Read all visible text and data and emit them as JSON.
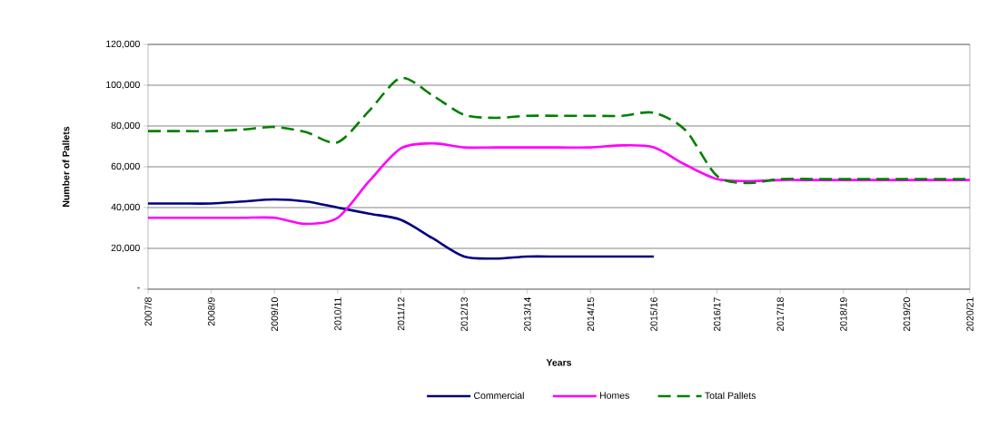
{
  "chart_data": {
    "type": "line",
    "xlabel": "Years",
    "ylabel": "Number of Pallets",
    "categories": [
      "2007/8",
      null,
      "2008/9",
      null,
      "2009/10",
      null,
      "2010/11",
      null,
      "2011/12",
      null,
      "2012/13",
      null,
      "2013/14",
      null,
      "2014/15",
      null,
      "2015/16",
      null,
      "2016/17",
      null,
      "2017/18",
      null,
      "2018/19",
      null,
      "2019/20",
      null,
      "2020/21"
    ],
    "series": [
      {
        "name": "Commercial",
        "color": "#000080",
        "line_style": "solid",
        "values": [
          42000,
          42000,
          42000,
          43000,
          44000,
          43000,
          40000,
          37000,
          34000,
          25000,
          16000,
          15000,
          16000,
          16000,
          16000,
          16000,
          16000,
          null,
          null,
          null,
          null,
          null,
          null,
          null,
          null,
          null,
          null
        ]
      },
      {
        "name": "Homes",
        "color": "#ff00ff",
        "line_style": "solid",
        "values": [
          35000,
          35000,
          35000,
          35000,
          35000,
          32000,
          35000,
          53000,
          69000,
          71500,
          69500,
          69500,
          69500,
          69500,
          69500,
          70500,
          69500,
          61000,
          54000,
          53000,
          53500,
          53500,
          53500,
          53500,
          53500,
          53500,
          53500
        ]
      },
      {
        "name": "Total Pallets",
        "color": "#008000",
        "line_style": "dashed",
        "values": [
          77500,
          77500,
          77500,
          78300,
          79500,
          77000,
          72000,
          87500,
          103500,
          95000,
          85500,
          84000,
          85000,
          85000,
          85000,
          85000,
          86500,
          78000,
          55500,
          52000,
          54000,
          54000,
          54000,
          54000,
          54000,
          54000,
          54000
        ]
      }
    ],
    "ylim": [
      0,
      120000
    ],
    "yticks": [
      {
        "value": 0,
        "label": "-"
      },
      {
        "value": 20000,
        "label": "20,000"
      },
      {
        "value": 40000,
        "label": "40,000"
      },
      {
        "value": 60000,
        "label": "60,000"
      },
      {
        "value": 80000,
        "label": "80,000"
      },
      {
        "value": 100000,
        "label": "100,000"
      },
      {
        "value": 120000,
        "label": "120,000"
      }
    ],
    "grid": "y",
    "legend": "bottom",
    "marker": "none"
  }
}
